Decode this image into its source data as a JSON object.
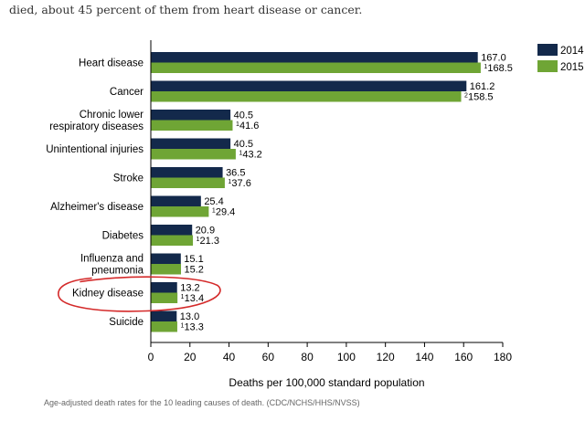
{
  "intro_text": "died, about 45 percent of them from heart disease or cancer.",
  "caption": "Age-adjusted death rates for the 10 leading causes of death. (CDC/NCHS/HHS/NVSS)",
  "colors": {
    "series_2014": "#13294b",
    "series_2015": "#6fa535",
    "annotation": "#d42a2a"
  },
  "chart_data": {
    "type": "bar",
    "orientation": "horizontal",
    "xlabel": "Deaths per 100,000 standard population",
    "xlim": [
      0,
      180
    ],
    "xticks": [
      0,
      20,
      40,
      60,
      80,
      100,
      120,
      140,
      160,
      180
    ],
    "grid": false,
    "legend_position": "top-right",
    "categories": [
      [
        "Heart disease"
      ],
      [
        "Cancer"
      ],
      [
        "Chronic lower",
        "respiratory diseases"
      ],
      [
        "Unintentional injuries"
      ],
      [
        "Stroke"
      ],
      [
        "Alzheimer's disease"
      ],
      [
        "Diabetes"
      ],
      [
        "Influenza and",
        "pneumonia"
      ],
      [
        "Kidney disease"
      ],
      [
        "Suicide"
      ]
    ],
    "series": [
      {
        "name": "2014",
        "values": [
          167.0,
          161.2,
          40.5,
          40.5,
          36.5,
          25.4,
          20.9,
          15.1,
          13.2,
          13.0
        ],
        "labels": [
          "167.0",
          "161.2",
          "40.5",
          "40.5",
          "36.5",
          "25.4",
          "20.9",
          "15.1",
          "13.2",
          "13.0"
        ],
        "markers": [
          "",
          "",
          "",
          "",
          "",
          "",
          "",
          "",
          "",
          ""
        ]
      },
      {
        "name": "2015",
        "values": [
          168.5,
          158.5,
          41.6,
          43.2,
          37.6,
          29.4,
          21.3,
          15.2,
          13.4,
          13.3
        ],
        "labels": [
          "168.5",
          "158.5",
          "41.6",
          "43.2",
          "37.6",
          "29.4",
          "21.3",
          "15.2",
          "13.4",
          "13.3"
        ],
        "markers": [
          "1",
          "2",
          "1",
          "1",
          "1",
          "1",
          "1",
          "",
          "1",
          "1"
        ]
      }
    ],
    "highlighted_category": "Kidney disease"
  }
}
